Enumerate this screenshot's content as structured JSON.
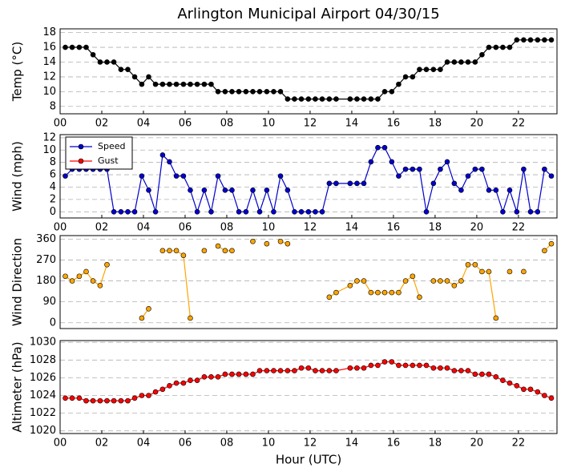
{
  "chart_data": [
    {
      "type": "line",
      "title": "Arlington Municipal Airport 04/30/15",
      "ylabel": "Temp (°C)",
      "color": "#000000",
      "x": [
        0.25,
        0.58,
        0.92,
        1.25,
        1.58,
        1.92,
        2.25,
        2.58,
        2.92,
        3.25,
        3.58,
        3.92,
        4.25,
        4.58,
        4.92,
        5.25,
        5.58,
        5.92,
        6.25,
        6.58,
        6.92,
        7.25,
        7.58,
        7.92,
        8.25,
        8.58,
        8.92,
        9.25,
        9.58,
        9.92,
        10.25,
        10.58,
        10.92,
        11.25,
        11.58,
        11.92,
        12.25,
        12.58,
        12.92,
        13.25,
        13.92,
        14.25,
        14.58,
        14.92,
        15.25,
        15.58,
        15.92,
        16.25,
        16.58,
        16.92,
        17.25,
        17.58,
        17.92,
        18.25,
        18.58,
        18.92,
        19.25,
        19.58,
        19.92,
        20.25,
        20.58,
        20.92,
        21.25,
        21.58,
        21.92,
        22.25,
        22.58,
        22.92,
        23.25,
        23.58
      ],
      "values": [
        16,
        16,
        16,
        16,
        15,
        14,
        14,
        14,
        13,
        13,
        12,
        11,
        12,
        11,
        11,
        11,
        11,
        11,
        11,
        11,
        11,
        11,
        10,
        10,
        10,
        10,
        10,
        10,
        10,
        10,
        10,
        10,
        9,
        9,
        9,
        9,
        9,
        9,
        9,
        9,
        9,
        9,
        9,
        9,
        9,
        10,
        10,
        11,
        12,
        12,
        13,
        13,
        13,
        13,
        14,
        14,
        14,
        14,
        14,
        15,
        16,
        16,
        16,
        16,
        17,
        17,
        17,
        17,
        17,
        17
      ],
      "xlim": [
        0,
        23.85
      ],
      "ylim": [
        7,
        18.5
      ],
      "yticks": [
        8,
        10,
        12,
        14,
        16,
        18
      ],
      "xticks": [
        {
          "value": 0,
          "label": "00"
        },
        {
          "value": 2,
          "label": "02"
        },
        {
          "value": 4,
          "label": "04"
        },
        {
          "value": 6,
          "label": "06"
        },
        {
          "value": 8,
          "label": "08"
        },
        {
          "value": 10,
          "label": "10"
        },
        {
          "value": 12,
          "label": "12"
        },
        {
          "value": 14,
          "label": "14"
        },
        {
          "value": 16,
          "label": "16"
        },
        {
          "value": 18,
          "label": "18"
        },
        {
          "value": 20,
          "label": "20"
        },
        {
          "value": 22,
          "label": "22"
        }
      ],
      "grid": true
    },
    {
      "type": "line",
      "ylabel": "Wind (mph)",
      "legend": "upper left",
      "x": [
        0.25,
        0.58,
        0.92,
        1.25,
        1.58,
        1.92,
        2.25,
        2.58,
        2.92,
        3.25,
        3.58,
        3.92,
        4.25,
        4.58,
        4.92,
        5.25,
        5.58,
        5.92,
        6.25,
        6.58,
        6.92,
        7.25,
        7.58,
        7.92,
        8.25,
        8.58,
        8.92,
        9.25,
        9.58,
        9.92,
        10.25,
        10.58,
        10.92,
        11.25,
        11.58,
        11.92,
        12.25,
        12.58,
        12.92,
        13.25,
        13.92,
        14.25,
        14.58,
        14.92,
        15.25,
        15.58,
        15.92,
        16.25,
        16.58,
        16.92,
        17.25,
        17.58,
        17.92,
        18.25,
        18.58,
        18.92,
        19.25,
        19.58,
        19.92,
        20.25,
        20.58,
        20.92,
        21.25,
        21.58,
        21.92,
        22.25,
        22.58,
        22.92,
        23.25,
        23.58
      ],
      "series": [
        {
          "name": "Speed",
          "color": "#0000cc",
          "values": [
            5.8,
            6.9,
            6.9,
            6.9,
            6.9,
            6.9,
            6.9,
            0,
            0,
            0,
            0,
            5.8,
            3.5,
            0,
            9.2,
            8.1,
            5.8,
            5.8,
            3.5,
            0,
            3.5,
            0,
            5.8,
            3.5,
            3.5,
            0,
            0,
            3.5,
            0,
            3.5,
            0,
            5.8,
            3.5,
            0,
            0,
            0,
            0,
            0,
            4.6,
            4.6,
            4.6,
            4.6,
            4.6,
            8.1,
            10.4,
            10.4,
            8.1,
            5.8,
            6.9,
            6.9,
            6.9,
            0,
            4.6,
            6.9,
            8.1,
            4.6,
            3.5,
            5.8,
            6.9,
            6.9,
            3.5,
            3.5,
            0,
            3.5,
            0,
            6.9,
            0,
            0,
            6.9,
            5.8
          ]
        },
        {
          "name": "Gust",
          "color": "#ff0000",
          "values": [
            null,
            null,
            null,
            null,
            null,
            null,
            null,
            null,
            null,
            null,
            null,
            null,
            null,
            null,
            null,
            null,
            null,
            null,
            null,
            null,
            null,
            null,
            null,
            null,
            null,
            null,
            null,
            null,
            null,
            null,
            null,
            null,
            null,
            null,
            null,
            null,
            null,
            null,
            null,
            null,
            null,
            null,
            null,
            null,
            null,
            null,
            null,
            null,
            null,
            null,
            null,
            null,
            null,
            null,
            null,
            null,
            null,
            null,
            null,
            null,
            null,
            null,
            null,
            null,
            null,
            null,
            null,
            null,
            null,
            null
          ]
        }
      ],
      "xlim": [
        0,
        23.85
      ],
      "ylim": [
        -1,
        12.5
      ],
      "yticks": [
        0,
        2,
        4,
        6,
        8,
        10,
        12
      ],
      "xticks": [
        {
          "value": 0,
          "label": "00"
        },
        {
          "value": 2,
          "label": "02"
        },
        {
          "value": 4,
          "label": "04"
        },
        {
          "value": 6,
          "label": "06"
        },
        {
          "value": 8,
          "label": "08"
        },
        {
          "value": 10,
          "label": "10"
        },
        {
          "value": 12,
          "label": "12"
        },
        {
          "value": 14,
          "label": "14"
        },
        {
          "value": 16,
          "label": "16"
        },
        {
          "value": 18,
          "label": "18"
        },
        {
          "value": 20,
          "label": "20"
        },
        {
          "value": 22,
          "label": "22"
        }
      ],
      "grid": true
    },
    {
      "type": "line",
      "ylabel": "Wind Direction",
      "color": "#ffa500",
      "x": [
        0.25,
        0.58,
        0.92,
        1.25,
        1.58,
        1.92,
        2.25,
        2.58,
        2.92,
        3.25,
        3.58,
        3.92,
        4.25,
        4.58,
        4.92,
        5.25,
        5.58,
        5.92,
        6.25,
        6.58,
        6.92,
        7.25,
        7.58,
        7.92,
        8.25,
        8.58,
        8.92,
        9.25,
        9.58,
        9.92,
        10.25,
        10.58,
        10.92,
        11.25,
        11.58,
        11.92,
        12.25,
        12.58,
        12.92,
        13.25,
        13.92,
        14.25,
        14.58,
        14.92,
        15.25,
        15.58,
        15.92,
        16.25,
        16.58,
        16.92,
        17.25,
        17.58,
        17.92,
        18.25,
        18.58,
        18.92,
        19.25,
        19.58,
        19.92,
        20.25,
        20.58,
        20.92,
        21.25,
        21.58,
        21.92,
        22.25,
        22.58,
        22.92,
        23.25,
        23.58
      ],
      "values": [
        200,
        180,
        200,
        220,
        180,
        160,
        250,
        null,
        null,
        null,
        null,
        20,
        60,
        null,
        310,
        310,
        310,
        290,
        20,
        null,
        310,
        null,
        330,
        310,
        310,
        null,
        null,
        350,
        null,
        340,
        null,
        350,
        340,
        null,
        null,
        null,
        null,
        null,
        110,
        130,
        160,
        180,
        180,
        130,
        130,
        130,
        130,
        130,
        180,
        200,
        110,
        null,
        180,
        180,
        180,
        160,
        180,
        250,
        250,
        220,
        220,
        20,
        null,
        220,
        null,
        220,
        null,
        null,
        310,
        340
      ],
      "xlim": [
        0,
        23.85
      ],
      "ylim": [
        -25,
        375
      ],
      "yticks": [
        0,
        90,
        180,
        270,
        360
      ],
      "grid": true
    },
    {
      "type": "line",
      "ylabel": "Altimeter (hPa)",
      "xlabel": "Hour (UTC)",
      "color": "#ff0000",
      "x": [
        0.25,
        0.58,
        0.92,
        1.25,
        1.58,
        1.92,
        2.25,
        2.58,
        2.92,
        3.25,
        3.58,
        3.92,
        4.25,
        4.58,
        4.92,
        5.25,
        5.58,
        5.92,
        6.25,
        6.58,
        6.92,
        7.25,
        7.58,
        7.92,
        8.25,
        8.58,
        8.92,
        9.25,
        9.58,
        9.92,
        10.25,
        10.58,
        10.92,
        11.25,
        11.58,
        11.92,
        12.25,
        12.58,
        12.92,
        13.25,
        13.92,
        14.25,
        14.58,
        14.92,
        15.25,
        15.58,
        15.92,
        16.25,
        16.58,
        16.92,
        17.25,
        17.58,
        17.92,
        18.25,
        18.58,
        18.92,
        19.25,
        19.58,
        19.92,
        20.25,
        20.58,
        20.92,
        21.25,
        21.58,
        21.92,
        22.25,
        22.58,
        22.92,
        23.25,
        23.58
      ],
      "values": [
        1023.7,
        1023.7,
        1023.7,
        1023.4,
        1023.4,
        1023.4,
        1023.4,
        1023.4,
        1023.4,
        1023.4,
        1023.7,
        1024.0,
        1024.0,
        1024.4,
        1024.7,
        1025.1,
        1025.4,
        1025.4,
        1025.7,
        1025.7,
        1026.1,
        1026.1,
        1026.1,
        1026.4,
        1026.4,
        1026.4,
        1026.4,
        1026.4,
        1026.8,
        1026.8,
        1026.8,
        1026.8,
        1026.8,
        1026.8,
        1027.1,
        1027.1,
        1026.8,
        1026.8,
        1026.8,
        1026.8,
        1027.1,
        1027.1,
        1027.1,
        1027.4,
        1027.4,
        1027.8,
        1027.8,
        1027.4,
        1027.4,
        1027.4,
        1027.4,
        1027.4,
        1027.1,
        1027.1,
        1027.1,
        1026.8,
        1026.8,
        1026.8,
        1026.4,
        1026.4,
        1026.4,
        1026.1,
        1025.7,
        1025.4,
        1025.1,
        1024.7,
        1024.7,
        1024.4,
        1024.0,
        1023.7
      ],
      "xlim": [
        0,
        23.85
      ],
      "ylim": [
        1019.7,
        1030.2
      ],
      "yticks": [
        1020,
        1022,
        1024,
        1026,
        1028,
        1030
      ],
      "xticks": [
        {
          "value": 0,
          "label": "00"
        },
        {
          "value": 2,
          "label": "02"
        },
        {
          "value": 4,
          "label": "04"
        },
        {
          "value": 6,
          "label": "06"
        },
        {
          "value": 8,
          "label": "08"
        },
        {
          "value": 10,
          "label": "10"
        },
        {
          "value": 12,
          "label": "12"
        },
        {
          "value": 14,
          "label": "14"
        },
        {
          "value": 16,
          "label": "16"
        },
        {
          "value": 18,
          "label": "18"
        },
        {
          "value": 20,
          "label": "20"
        },
        {
          "value": 22,
          "label": "22"
        }
      ],
      "grid": true
    }
  ]
}
